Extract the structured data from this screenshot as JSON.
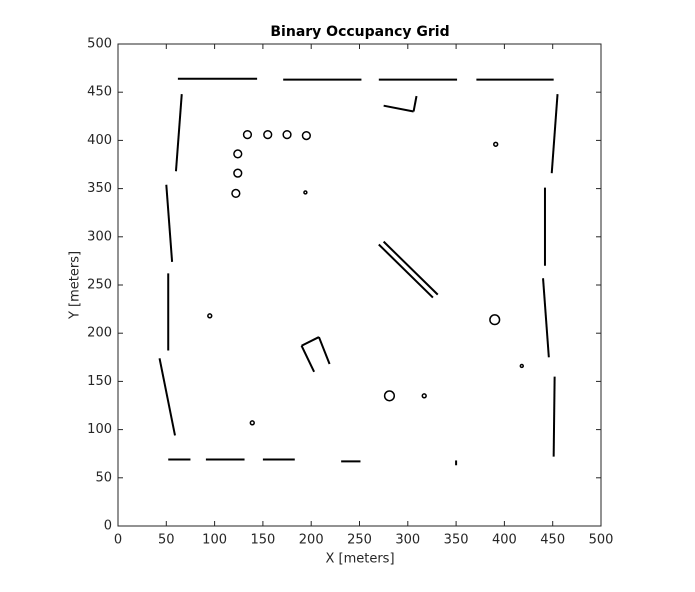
{
  "chart_data": {
    "type": "occupancy",
    "title": "Binary Occupancy Grid",
    "xlabel": "X [meters]",
    "ylabel": "Y [meters]",
    "xlim": [
      0,
      500
    ],
    "ylim": [
      0,
      500
    ],
    "xticks": [
      0,
      50,
      100,
      150,
      200,
      250,
      300,
      350,
      400,
      450,
      500
    ],
    "yticks": [
      0,
      50,
      100,
      150,
      200,
      250,
      300,
      350,
      400,
      450,
      500
    ],
    "color": "#000000",
    "walls": [
      [
        62,
        464,
        144,
        464
      ],
      [
        171,
        463,
        252,
        463
      ],
      [
        270,
        463,
        351,
        463
      ],
      [
        371,
        463,
        451,
        463
      ],
      [
        66,
        448,
        60,
        368
      ],
      [
        50,
        354,
        56,
        274
      ],
      [
        52,
        262,
        52,
        182
      ],
      [
        43,
        174,
        59,
        94
      ],
      [
        455,
        448,
        449,
        366
      ],
      [
        442,
        351,
        442,
        270
      ],
      [
        440,
        257,
        446,
        175
      ],
      [
        452,
        155,
        451,
        72
      ],
      [
        52,
        69,
        75,
        69
      ],
      [
        91,
        69,
        131,
        69
      ],
      [
        150,
        69,
        183,
        69
      ],
      [
        231,
        67,
        251,
        67
      ],
      [
        350,
        68,
        350,
        63
      ],
      [
        275,
        436,
        306,
        430
      ],
      [
        306,
        430,
        309,
        446
      ],
      [
        270,
        292,
        326,
        237
      ],
      [
        275,
        295,
        331,
        240
      ],
      [
        190,
        187,
        208,
        196
      ],
      [
        190,
        187,
        203,
        160
      ],
      [
        208,
        196,
        219,
        168
      ]
    ],
    "obstacles": [
      [
        134,
        406,
        4
      ],
      [
        155,
        406,
        4
      ],
      [
        175,
        406,
        4
      ],
      [
        195,
        405,
        4
      ],
      [
        124,
        386,
        4
      ],
      [
        124,
        366,
        4
      ],
      [
        122,
        345,
        4
      ],
      [
        194,
        346,
        1.5
      ],
      [
        391,
        396,
        2
      ],
      [
        390,
        214,
        5
      ],
      [
        281,
        135,
        5
      ],
      [
        317,
        135,
        2
      ],
      [
        418,
        166,
        1.5
      ],
      [
        139,
        107,
        2
      ],
      [
        95,
        218,
        2
      ]
    ]
  }
}
